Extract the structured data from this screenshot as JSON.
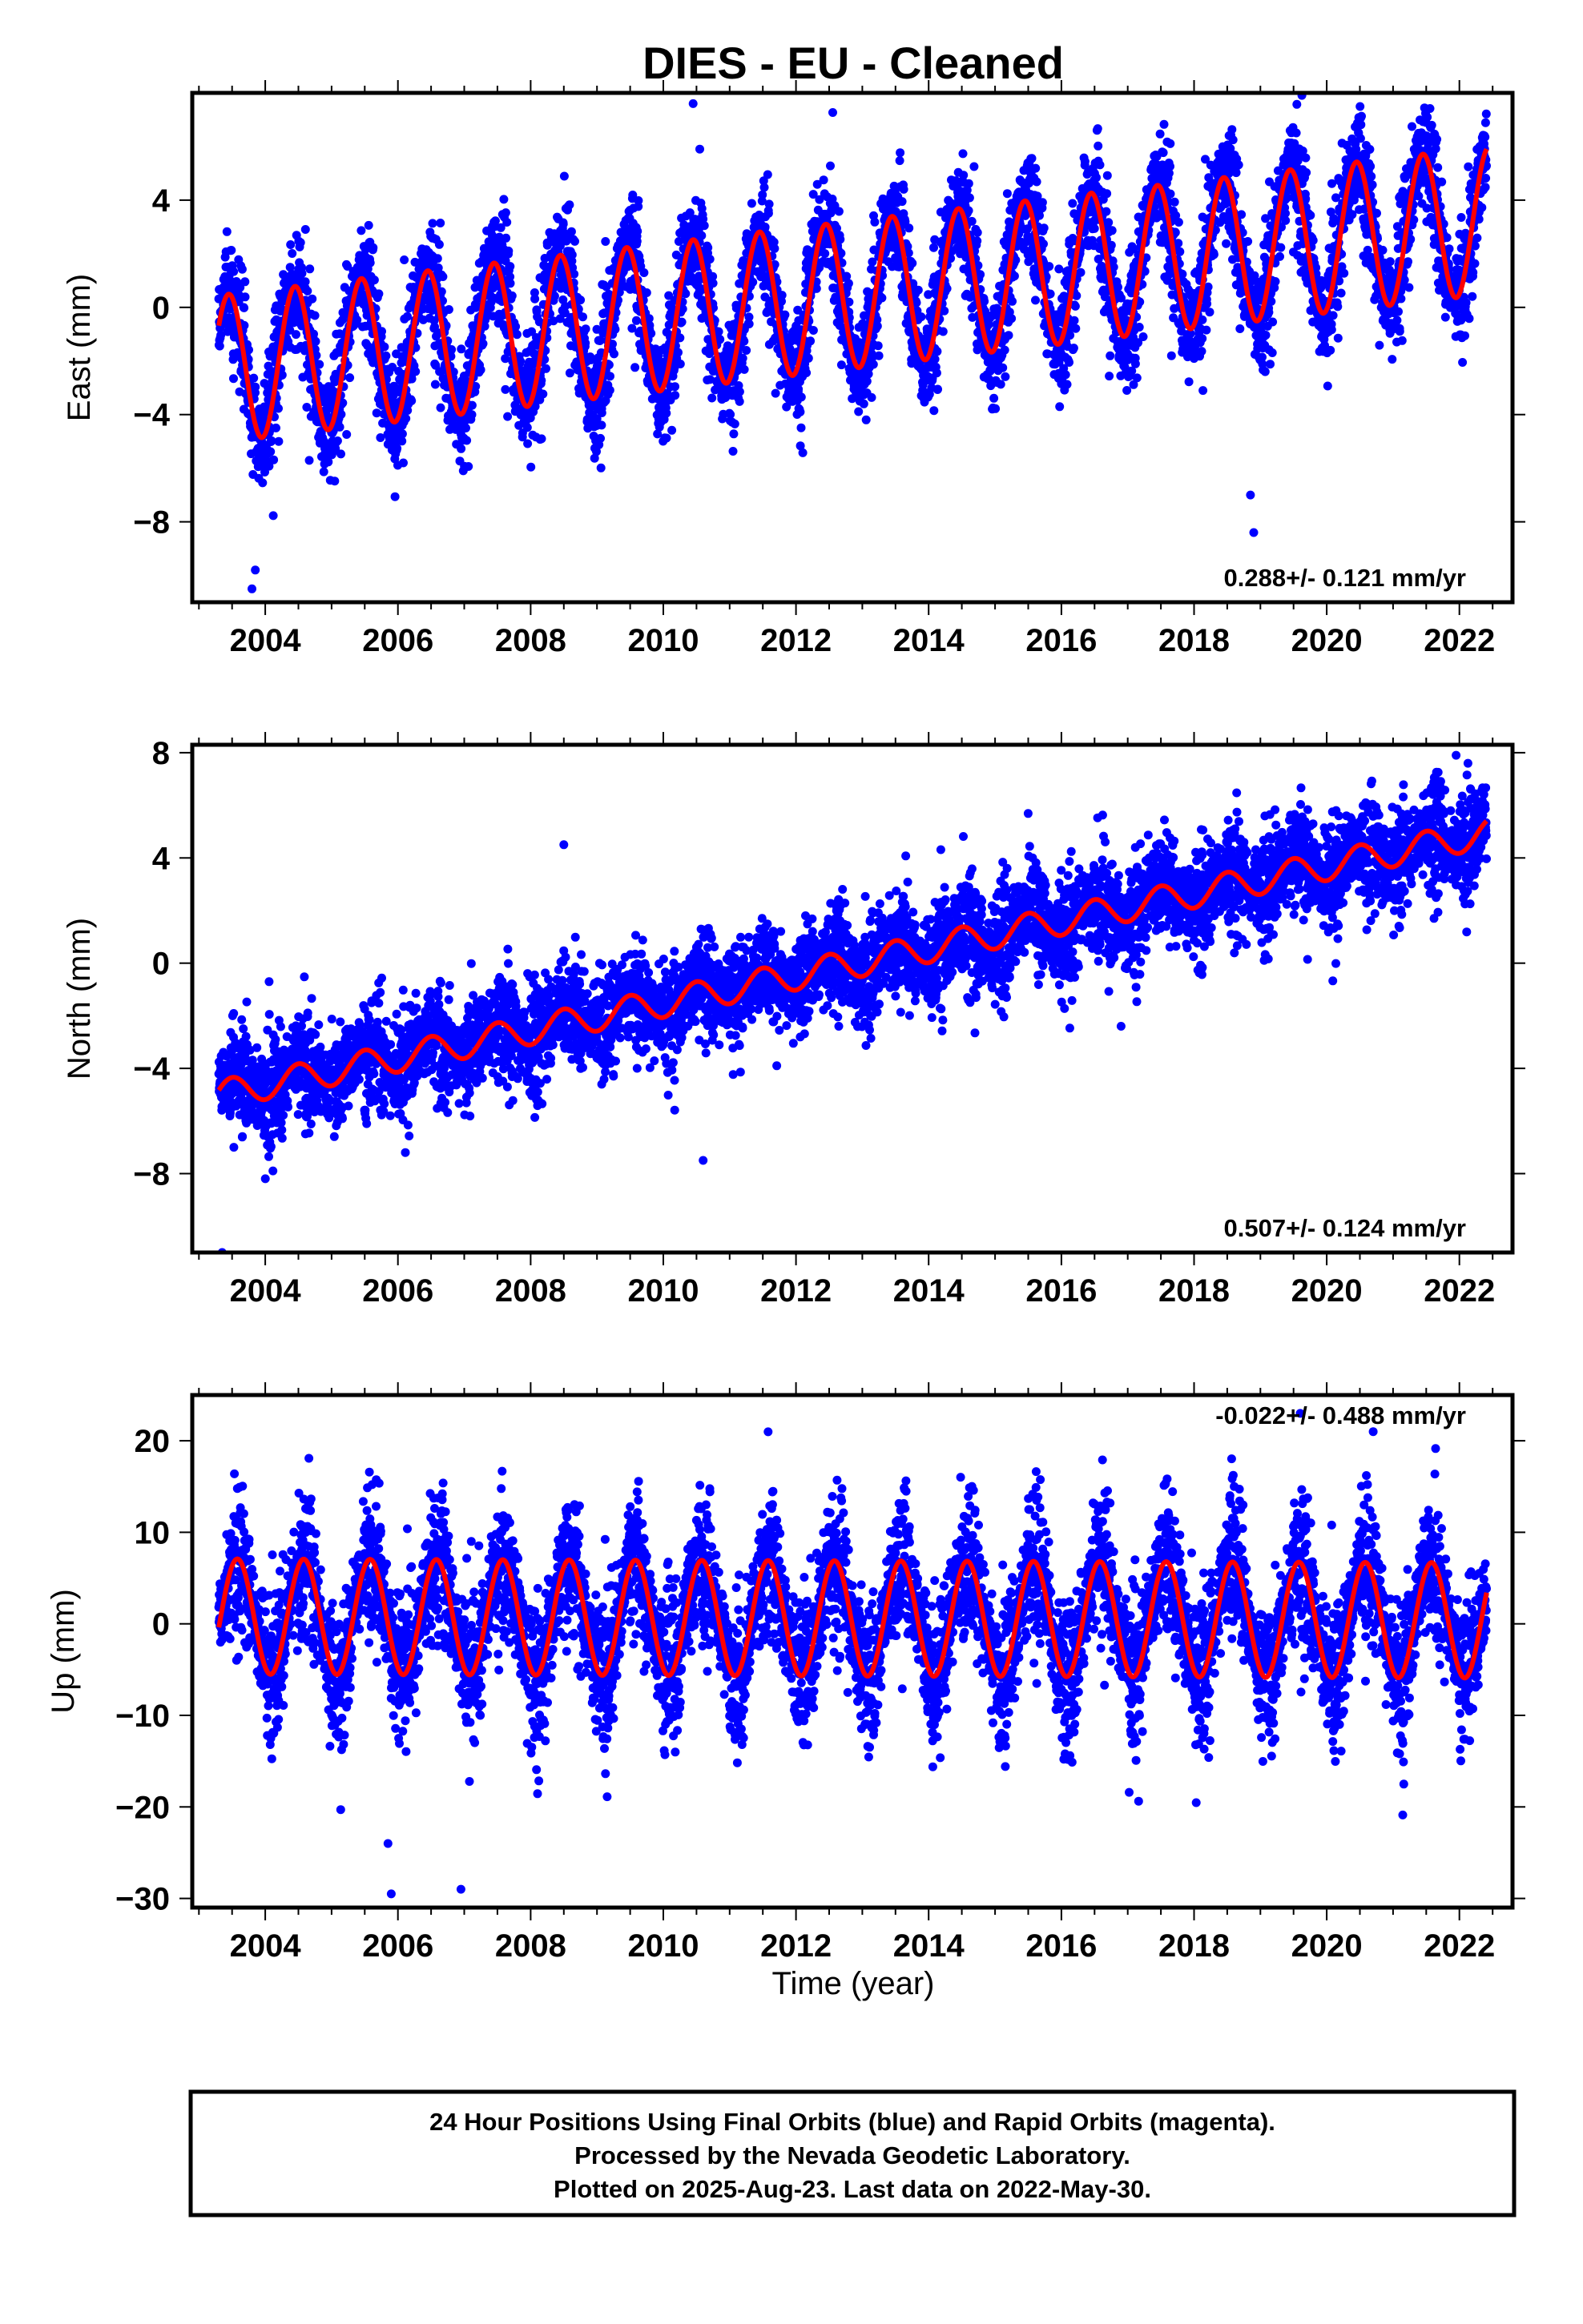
{
  "chart_data": {
    "type": "scatter",
    "title": "DIES  - EU - Cleaned",
    "xlabel": "Time (year)",
    "xlim": [
      2002.9,
      2022.8
    ],
    "x_ticks": [
      2004,
      2006,
      2008,
      2010,
      2012,
      2014,
      2016,
      2018,
      2020,
      2022
    ],
    "x_tick_labels": [
      "2004",
      "2006",
      "2008",
      "2010",
      "2012",
      "2014",
      "2016",
      "2018",
      "2020",
      "2022"
    ],
    "time_span": [
      2003.3,
      2022.41
    ],
    "colors": {
      "points": "#0000ff",
      "model": "#ff0000",
      "frame": "#000000"
    },
    "panels": [
      {
        "id": "east",
        "ylabel": "East (mm)",
        "ylim": [
          -11,
          8
        ],
        "y_ticks": [
          4,
          0,
          -4,
          -8
        ],
        "y_tick_labels": [
          "4",
          "0",
          "−4",
          "−8"
        ],
        "rate_label": "0.288+/- 0.121 mm/yr",
        "model": {
          "offset_mm": -2.3,
          "trend_mm_per_yr": 0.29,
          "trend_start": 2003.3,
          "annual_amplitude_mm": 2.75,
          "annual_peak_year_fraction": 0.45
        },
        "scatter_sd_mm": 1.05,
        "outliers": [
          [
            2003.8,
            -10.5
          ],
          [
            2003.85,
            -9.8
          ],
          [
            2010.45,
            7.6
          ],
          [
            2018.9,
            -8.4
          ],
          [
            2018.85,
            -7.0
          ]
        ]
      },
      {
        "id": "north",
        "ylabel": "North (mm)",
        "ylim": [
          -11,
          8.3
        ],
        "y_ticks": [
          8,
          4,
          0,
          -4,
          -8
        ],
        "y_tick_labels": [
          "8",
          "4",
          "0",
          "−4",
          "−8"
        ],
        "rate_label": "0.507+/- 0.124 mm/yr",
        "model": {
          "offset_mm": -5.0,
          "trend_mm_per_yr": 0.52,
          "trend_start": 2003.3,
          "annual_amplitude_mm": 0.55,
          "annual_peak_year_fraction": 0.5
        },
        "scatter_sd_mm": 0.95,
        "outliers": [
          [
            2003.35,
            -11.0
          ],
          [
            2008.5,
            4.5
          ],
          [
            2021.95,
            7.9
          ],
          [
            2016.9,
            -2.4
          ],
          [
            2010.6,
            -7.5
          ]
        ]
      },
      {
        "id": "up",
        "ylabel": "Up (mm)",
        "ylim": [
          -31,
          25
        ],
        "y_ticks": [
          20,
          10,
          0,
          -10,
          -20,
          -30
        ],
        "y_tick_labels": [
          "20",
          "10",
          "0",
          "−10",
          "−20",
          "−30"
        ],
        "rate_label": "-0.022+/- 0.488 mm/yr",
        "model": {
          "offset_mm": 0.8,
          "trend_mm_per_yr": -0.022,
          "trend_start": 2003.3,
          "annual_amplitude_mm": 6.3,
          "annual_peak_year_fraction": 0.58
        },
        "scatter_sd_mm": 3.6,
        "outliers": [
          [
            2005.85,
            -24.0
          ],
          [
            2005.9,
            -29.5
          ],
          [
            2006.95,
            -29.0
          ],
          [
            2019.6,
            23.0
          ],
          [
            2020.7,
            21.0
          ]
        ]
      }
    ]
  },
  "footer": {
    "line1": "24 Hour Positions Using Final Orbits (blue) and Rapid Orbits (magenta).",
    "line2": "Processed by the Nevada Geodetic Laboratory.",
    "line3": "Plotted on 2025-Aug-23. Last data on 2022-May-30."
  }
}
